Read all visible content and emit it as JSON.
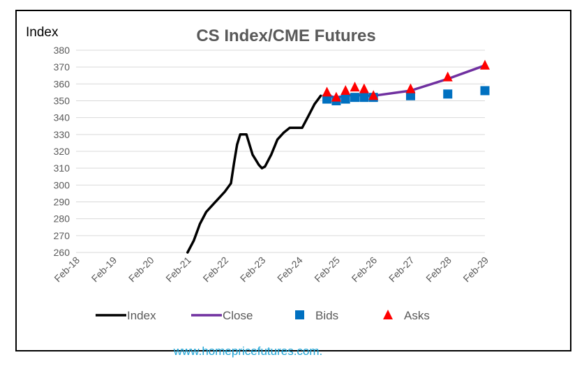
{
  "chart_data": {
    "type": "line",
    "title": "CS Index/CME Futures",
    "ylabel": "Index",
    "xlabel": "",
    "ylim": [
      260,
      380
    ],
    "yticks": [
      260,
      270,
      280,
      290,
      300,
      310,
      320,
      330,
      340,
      350,
      360,
      370,
      380
    ],
    "xlim": [
      "2018-02",
      "2029-02"
    ],
    "xtick_labels": [
      "Feb-18",
      "Feb-19",
      "Feb-20",
      "Feb-21",
      "Feb-22",
      "Feb-23",
      "Feb-24",
      "Feb-25",
      "Feb-26",
      "Feb-27",
      "Feb-28",
      "Feb-29"
    ],
    "grid": true,
    "legend": "bottom",
    "series": [
      {
        "name": "Index",
        "type": "line",
        "color": "#000000",
        "x": [
          "2021-02",
          "2021-04",
          "2021-06",
          "2021-08",
          "2021-10",
          "2021-12",
          "2022-02",
          "2022-04",
          "2022-05",
          "2022-06",
          "2022-07",
          "2022-09",
          "2022-11",
          "2022-12",
          "2023-01",
          "2023-02",
          "2023-03",
          "2023-05",
          "2023-07",
          "2023-09",
          "2023-11",
          "2024-01",
          "2024-03",
          "2024-05",
          "2024-07",
          "2024-09"
        ],
        "y": [
          260,
          267,
          277,
          284,
          288,
          292,
          296,
          301,
          313,
          324,
          330,
          330,
          318,
          315,
          312,
          310,
          311,
          318,
          327,
          331,
          334,
          334,
          334,
          341,
          348,
          353
        ]
      },
      {
        "name": "Close",
        "type": "line",
        "color": "#7030a0",
        "x": [
          "2024-11",
          "2025-02",
          "2025-05",
          "2025-08",
          "2025-11",
          "2026-02",
          "2027-02",
          "2028-02",
          "2029-02"
        ],
        "y": [
          353,
          352,
          353,
          353.5,
          353,
          353,
          356,
          363,
          371
        ]
      },
      {
        "name": "Bids",
        "type": "scatter",
        "marker": "square",
        "color": "#0070c0",
        "x": [
          "2024-11",
          "2025-02",
          "2025-05",
          "2025-08",
          "2025-11",
          "2026-02",
          "2027-02",
          "2028-02",
          "2029-02"
        ],
        "y": [
          351,
          350,
          351,
          352,
          352,
          352,
          353,
          354,
          356
        ]
      },
      {
        "name": "Asks",
        "type": "scatter",
        "marker": "triangle",
        "color": "#ff0000",
        "x": [
          "2024-11",
          "2025-02",
          "2025-05",
          "2025-08",
          "2025-11",
          "2026-02",
          "2027-02",
          "2028-02",
          "2029-02"
        ],
        "y": [
          355,
          352,
          356,
          358,
          357,
          353,
          357,
          364,
          371
        ]
      }
    ]
  },
  "footer": {
    "link_text": "www.homepricefutures.com."
  }
}
